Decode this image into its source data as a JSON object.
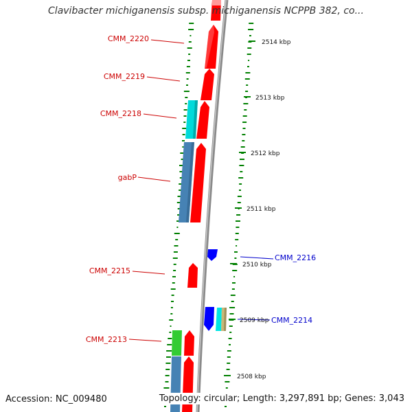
{
  "title": "Clavibacter michiganensis subsp. michiganensis NCPPB 382, co...",
  "accession_text": "Accession: NC_009480",
  "summary_text": "Topology: circular; Length: 3,297,891 bp; Genes: 3,043",
  "colors": {
    "forward_gene": "#ff0000",
    "reverse_gene": "#0000ff",
    "cds_steelblue": "#4682b4",
    "cds_cyan": "#00e5e5",
    "cds_green": "#33cc33",
    "cds_khaki": "#c8b878",
    "gc_skew_tick": "#008000",
    "backbone": "#808080",
    "forward_label": "#cc0000",
    "reverse_label": "#0000cc"
  },
  "scale_labels": [
    "2514 kbp",
    "2513 kbp",
    "2512 kbp",
    "2511 kbp",
    "2510 kbp",
    "2509 kbp",
    "2508 kbp"
  ],
  "gene_labels": [
    {
      "text": "CMM_2220",
      "strand": "forward"
    },
    {
      "text": "CMM_2219",
      "strand": "forward"
    },
    {
      "text": "CMM_2218",
      "strand": "forward"
    },
    {
      "text": "gabP",
      "strand": "forward"
    },
    {
      "text": "CMM_2215",
      "strand": "forward"
    },
    {
      "text": "CMM_2213",
      "strand": "forward"
    },
    {
      "text": "CMM_2216",
      "strand": "reverse"
    },
    {
      "text": "CMM_2214",
      "strand": "reverse"
    }
  ]
}
